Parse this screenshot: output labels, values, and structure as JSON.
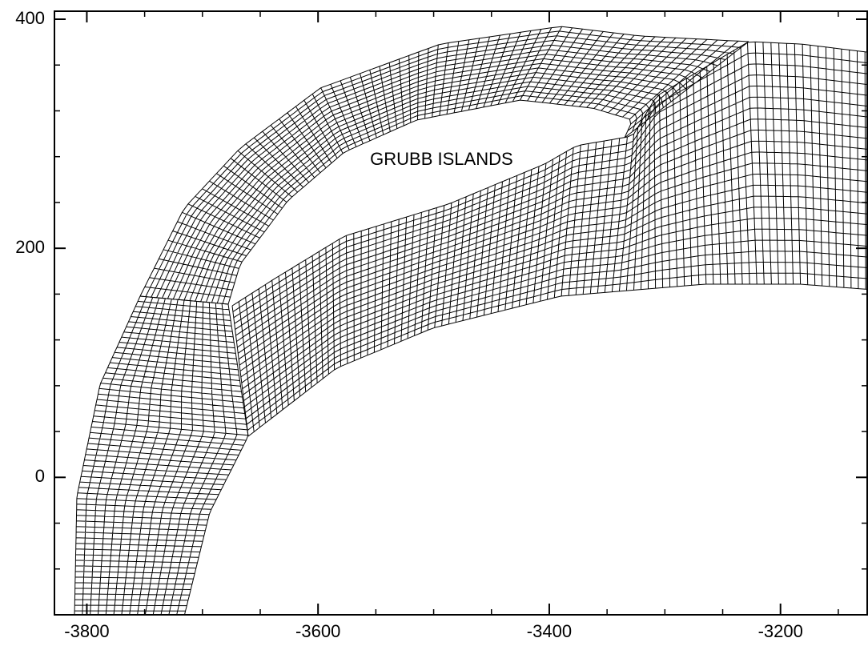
{
  "chart_data": {
    "type": "mesh",
    "xlim": [
      -3828,
      -3125
    ],
    "ylim": [
      -120,
      407
    ],
    "xticks": [
      -3800,
      -3600,
      -3400,
      -3200
    ],
    "xminorticks": [
      -3750,
      -3700,
      -3650,
      -3550,
      -3500,
      -3450,
      -3350,
      -3300,
      -3250,
      -3150
    ],
    "yticks": [
      0,
      200,
      400
    ],
    "yminorticks": [
      -80,
      -40,
      40,
      80,
      120,
      160,
      240,
      280,
      320,
      360
    ],
    "annotations": [
      {
        "text": "GRUBB ISLANDS",
        "x": -3555,
        "y": 277
      }
    ]
  }
}
